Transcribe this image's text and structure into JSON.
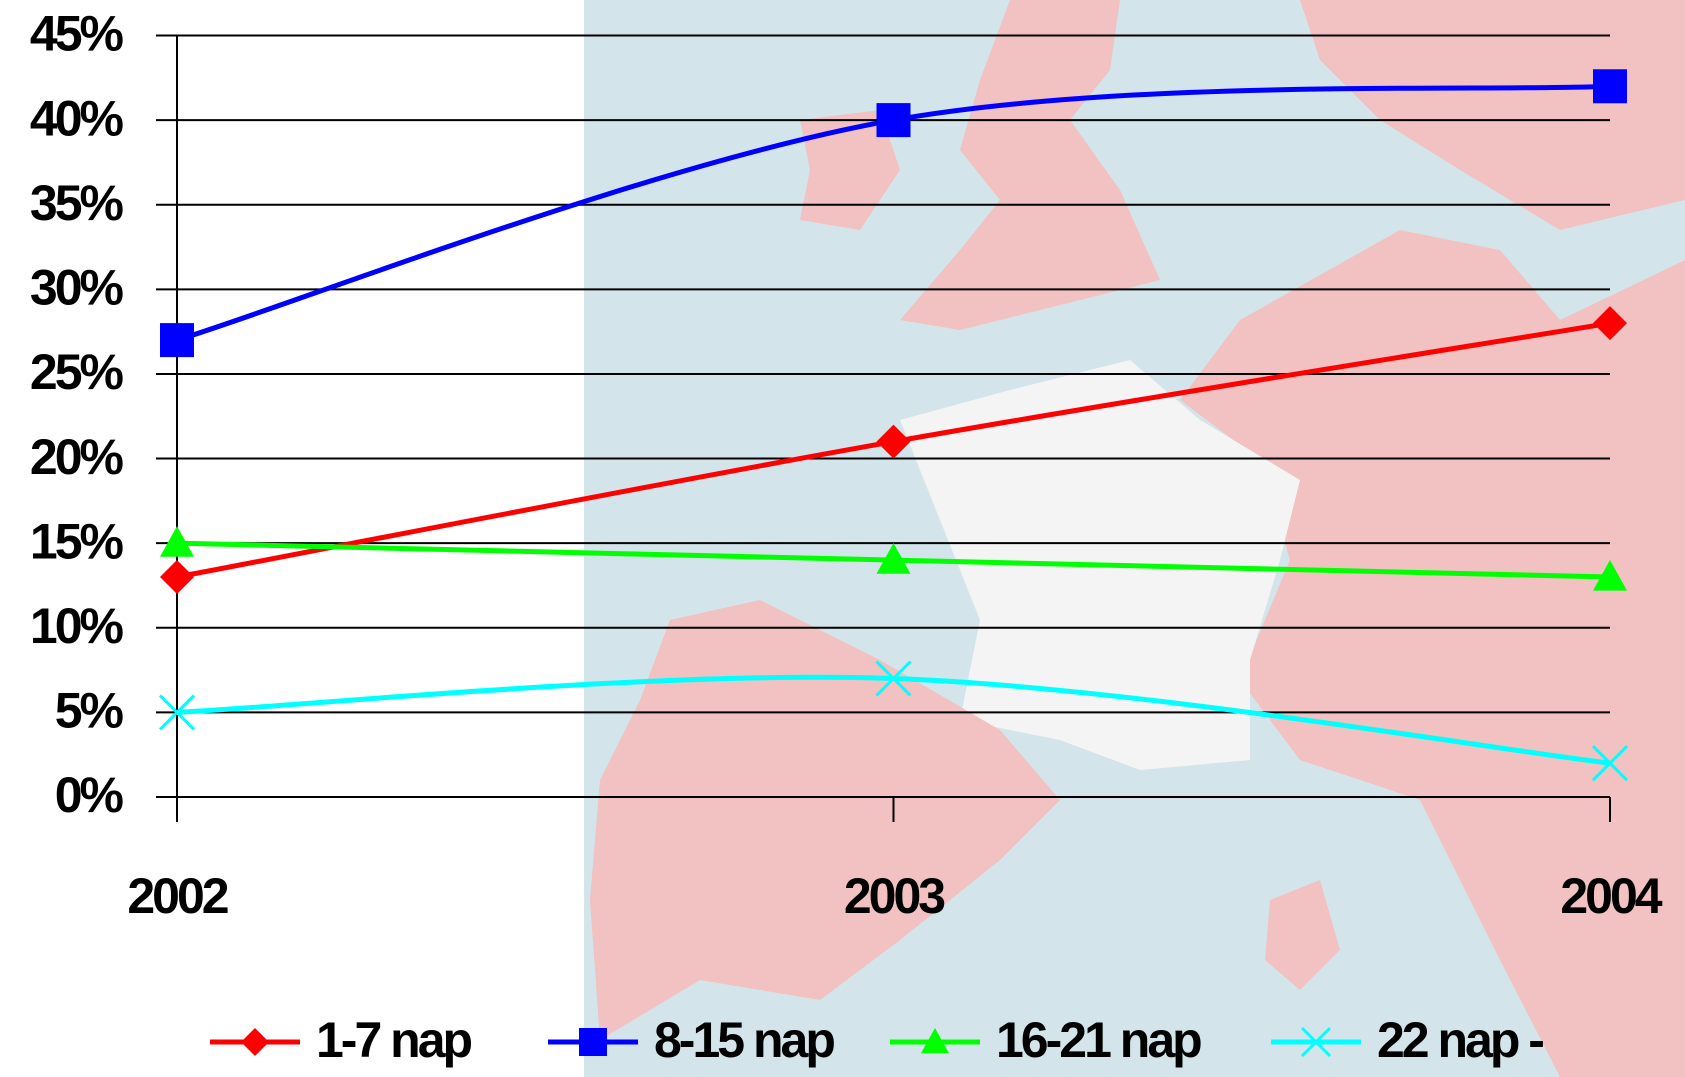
{
  "chart_data": {
    "type": "line",
    "categories": [
      "2002",
      "2003",
      "2004"
    ],
    "series": [
      {
        "name": "1-7 nap",
        "color": "#ff0000",
        "marker": "diamond",
        "values": [
          13,
          21,
          28
        ]
      },
      {
        "name": "8-15 nap",
        "color": "#0000ff",
        "marker": "square",
        "values": [
          27,
          40,
          42
        ]
      },
      {
        "name": "16-21 nap",
        "color": "#00ff00",
        "marker": "triangle",
        "values": [
          15,
          14,
          13
        ]
      },
      {
        "name": "22 nap -",
        "color": "#00ffff",
        "marker": "cross",
        "values": [
          5,
          7,
          2
        ]
      }
    ],
    "ylim": [
      0,
      45
    ],
    "yticks": [
      {
        "value": 0,
        "label": "0%"
      },
      {
        "value": 5,
        "label": "5%"
      },
      {
        "value": 10,
        "label": "10%"
      },
      {
        "value": 15,
        "label": "15%"
      },
      {
        "value": 20,
        "label": "20%"
      },
      {
        "value": 25,
        "label": "25%"
      },
      {
        "value": 30,
        "label": "30%"
      },
      {
        "value": 35,
        "label": "35%"
      },
      {
        "value": 40,
        "label": "40%"
      },
      {
        "value": 45,
        "label": "45%"
      }
    ],
    "grid": true,
    "smooth": true,
    "legend": "bottom"
  }
}
